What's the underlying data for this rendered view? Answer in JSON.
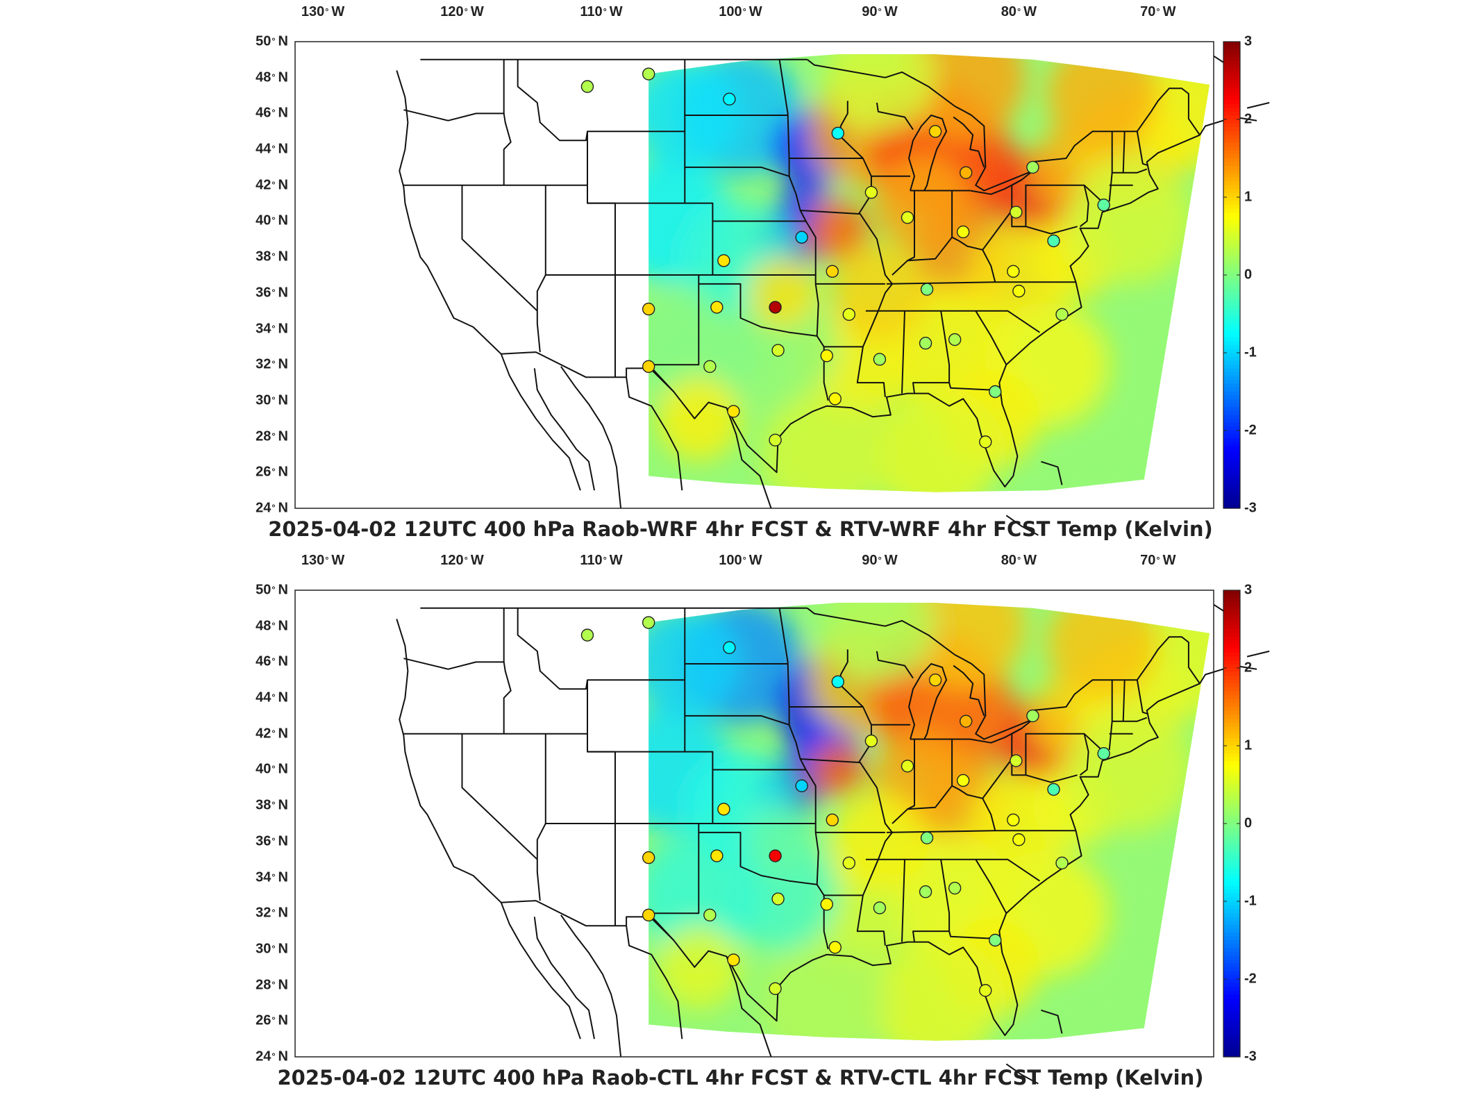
{
  "maps": [
    {
      "id": "top",
      "title": "2025-04-02 12UTC 400 hPa Raob-WRF 4hr FCST & RTV-WRF 4hr FCST Temp (Kelvin)"
    },
    {
      "id": "bottom",
      "title": "2025-04-02 12UTC 400 hPa Raob-CTL 4hr FCST & RTV-CTL 4hr FCST Temp (Kelvin)"
    }
  ],
  "longitude_labels": [
    "130",
    "120",
    "110",
    "100",
    "90",
    "80",
    "70"
  ],
  "longitude_suffix": "W",
  "latitude_labels": [
    "50",
    "48",
    "46",
    "44",
    "42",
    "40",
    "38",
    "36",
    "34",
    "32",
    "30",
    "28",
    "26",
    "24"
  ],
  "latitude_suffix": "N",
  "degree_symbol": "°",
  "colorbar": {
    "min": -3,
    "max": 3,
    "ticks": [
      "3",
      "2",
      "1",
      "0",
      "-1",
      "-2",
      "-3"
    ],
    "colormap": "jet",
    "stops": [
      "#00008f",
      "#0000ff",
      "#00ffff",
      "#80ff80",
      "#ffff00",
      "#ff0000",
      "#800000"
    ]
  },
  "map_extent": {
    "lon": [
      -132,
      -66
    ],
    "lat": [
      24,
      50
    ]
  },
  "raob_stations": {
    "top": [
      {
        "lon": -111.0,
        "lat": 47.5,
        "value": 0.3
      },
      {
        "lon": -106.6,
        "lat": 48.2,
        "value": 0.3
      },
      {
        "lon": -100.8,
        "lat": 46.8,
        "value": -0.8
      },
      {
        "lon": -93.0,
        "lat": 44.9,
        "value": -0.7
      },
      {
        "lon": -86.0,
        "lat": 45.0,
        "value": 1.0
      },
      {
        "lon": -83.8,
        "lat": 42.7,
        "value": 1.2
      },
      {
        "lon": -79.0,
        "lat": 43.0,
        "value": 0.2
      },
      {
        "lon": -90.6,
        "lat": 41.6,
        "value": 0.6
      },
      {
        "lon": -88.0,
        "lat": 40.2,
        "value": 0.6
      },
      {
        "lon": -80.2,
        "lat": 40.5,
        "value": 0.5
      },
      {
        "lon": -73.9,
        "lat": 40.9,
        "value": -0.2
      },
      {
        "lon": -95.6,
        "lat": 39.1,
        "value": -1.0
      },
      {
        "lon": -84.0,
        "lat": 39.4,
        "value": 0.7
      },
      {
        "lon": -77.5,
        "lat": 38.9,
        "value": -0.3
      },
      {
        "lon": -101.2,
        "lat": 37.8,
        "value": 0.9
      },
      {
        "lon": -93.4,
        "lat": 37.2,
        "value": 1.0
      },
      {
        "lon": -80.4,
        "lat": 37.2,
        "value": 0.7
      },
      {
        "lon": -86.6,
        "lat": 36.2,
        "value": 0.0
      },
      {
        "lon": -80.0,
        "lat": 36.1,
        "value": 0.7
      },
      {
        "lon": -106.6,
        "lat": 35.1,
        "value": 1.0
      },
      {
        "lon": -101.7,
        "lat": 35.2,
        "value": 0.9
      },
      {
        "lon": -97.5,
        "lat": 35.2,
        "value": 2.7
      },
      {
        "lon": -92.2,
        "lat": 34.8,
        "value": 0.6
      },
      {
        "lon": -76.9,
        "lat": 34.8,
        "value": 0.3
      },
      {
        "lon": -97.3,
        "lat": 32.8,
        "value": 0.5
      },
      {
        "lon": -93.8,
        "lat": 32.5,
        "value": 0.8
      },
      {
        "lon": -90.0,
        "lat": 32.3,
        "value": 0.2
      },
      {
        "lon": -86.7,
        "lat": 33.2,
        "value": 0.2
      },
      {
        "lon": -84.6,
        "lat": 33.4,
        "value": 0.3
      },
      {
        "lon": -106.6,
        "lat": 31.9,
        "value": 1.0
      },
      {
        "lon": -102.2,
        "lat": 31.9,
        "value": 0.3
      },
      {
        "lon": -100.5,
        "lat": 29.4,
        "value": 0.9
      },
      {
        "lon": -93.2,
        "lat": 30.1,
        "value": 0.8
      },
      {
        "lon": -81.7,
        "lat": 30.5,
        "value": 0.0
      },
      {
        "lon": -97.5,
        "lat": 27.8,
        "value": 0.5
      },
      {
        "lon": -82.4,
        "lat": 27.7,
        "value": 0.6
      }
    ],
    "bottom": [
      {
        "lon": -111.0,
        "lat": 47.5,
        "value": 0.3
      },
      {
        "lon": -106.6,
        "lat": 48.2,
        "value": 0.3
      },
      {
        "lon": -100.8,
        "lat": 46.8,
        "value": -0.8
      },
      {
        "lon": -93.0,
        "lat": 44.9,
        "value": -0.7
      },
      {
        "lon": -86.0,
        "lat": 45.0,
        "value": 1.0
      },
      {
        "lon": -83.8,
        "lat": 42.7,
        "value": 1.2
      },
      {
        "lon": -79.0,
        "lat": 43.0,
        "value": 0.2
      },
      {
        "lon": -90.6,
        "lat": 41.6,
        "value": 0.6
      },
      {
        "lon": -88.0,
        "lat": 40.2,
        "value": 0.6
      },
      {
        "lon": -80.2,
        "lat": 40.5,
        "value": 0.5
      },
      {
        "lon": -73.9,
        "lat": 40.9,
        "value": -0.2
      },
      {
        "lon": -95.6,
        "lat": 39.1,
        "value": -1.0
      },
      {
        "lon": -84.0,
        "lat": 39.4,
        "value": 0.7
      },
      {
        "lon": -77.5,
        "lat": 38.9,
        "value": -0.3
      },
      {
        "lon": -101.2,
        "lat": 37.8,
        "value": 0.9
      },
      {
        "lon": -93.4,
        "lat": 37.2,
        "value": 1.0
      },
      {
        "lon": -80.4,
        "lat": 37.2,
        "value": 0.7
      },
      {
        "lon": -86.6,
        "lat": 36.2,
        "value": 0.0
      },
      {
        "lon": -80.0,
        "lat": 36.1,
        "value": 0.7
      },
      {
        "lon": -106.6,
        "lat": 35.1,
        "value": 1.0
      },
      {
        "lon": -101.7,
        "lat": 35.2,
        "value": 0.9
      },
      {
        "lon": -97.5,
        "lat": 35.2,
        "value": 2.3
      },
      {
        "lon": -92.2,
        "lat": 34.8,
        "value": 0.6
      },
      {
        "lon": -76.9,
        "lat": 34.8,
        "value": 0.3
      },
      {
        "lon": -97.3,
        "lat": 32.8,
        "value": 0.5
      },
      {
        "lon": -93.8,
        "lat": 32.5,
        "value": 0.8
      },
      {
        "lon": -90.0,
        "lat": 32.3,
        "value": 0.2
      },
      {
        "lon": -86.7,
        "lat": 33.2,
        "value": 0.2
      },
      {
        "lon": -84.6,
        "lat": 33.4,
        "value": 0.3
      },
      {
        "lon": -106.6,
        "lat": 31.9,
        "value": 1.0
      },
      {
        "lon": -102.2,
        "lat": 31.9,
        "value": 0.3
      },
      {
        "lon": -100.5,
        "lat": 29.4,
        "value": 0.9
      },
      {
        "lon": -93.2,
        "lat": 30.1,
        "value": 0.8
      },
      {
        "lon": -81.7,
        "lat": 30.5,
        "value": 0.0
      },
      {
        "lon": -97.5,
        "lat": 27.8,
        "value": 0.5
      },
      {
        "lon": -82.4,
        "lat": 27.7,
        "value": 0.6
      }
    ]
  }
}
